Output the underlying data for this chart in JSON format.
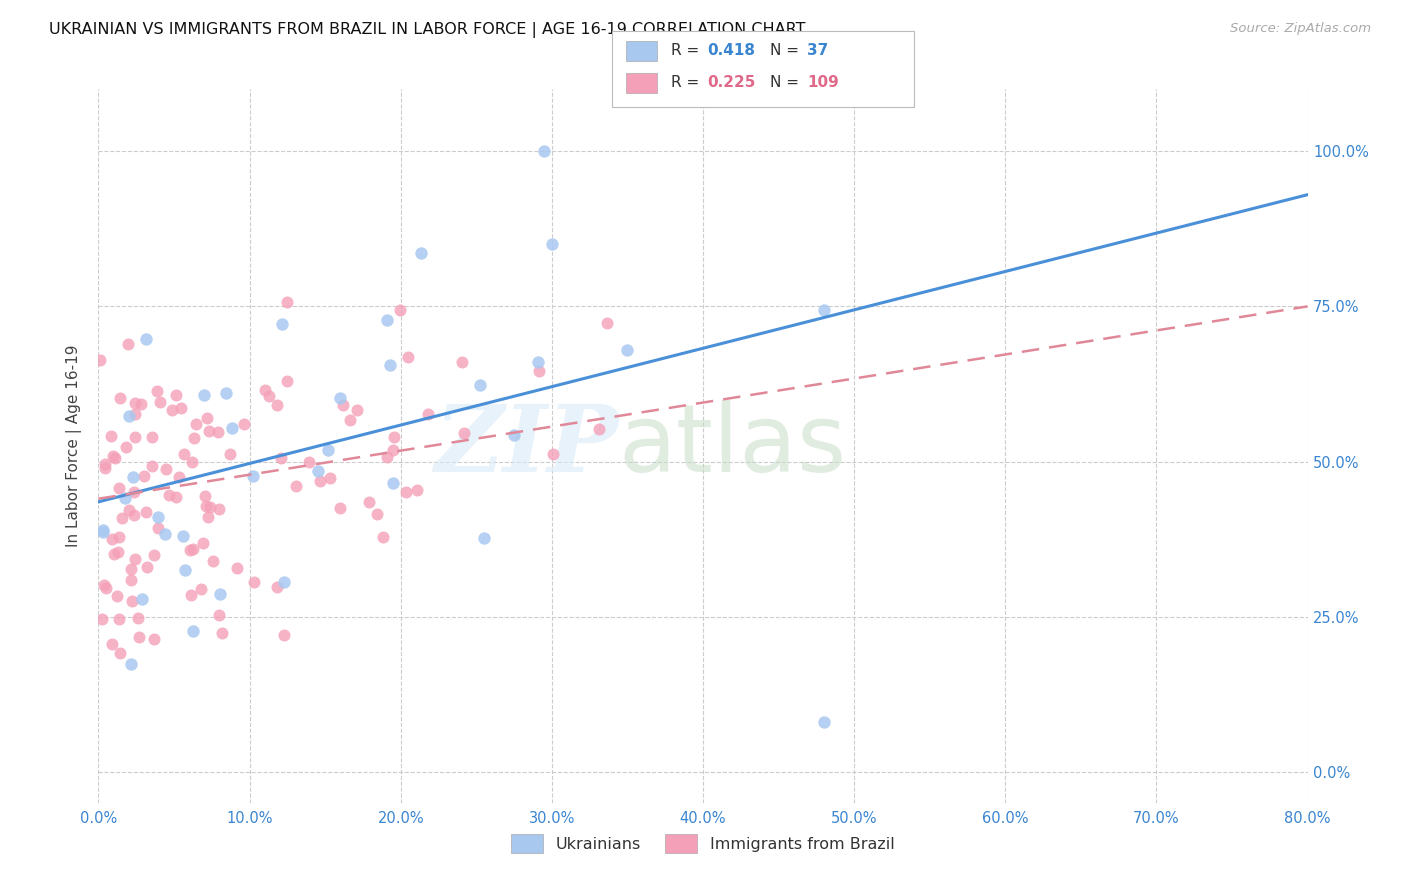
{
  "title": "UKRAINIAN VS IMMIGRANTS FROM BRAZIL IN LABOR FORCE | AGE 16-19 CORRELATION CHART",
  "source": "Source: ZipAtlas.com",
  "ylabel": "In Labor Force | Age 16-19",
  "xlim": [
    0.0,
    0.8
  ],
  "ylim": [
    -0.05,
    1.1
  ],
  "xticks": [
    0.0,
    0.1,
    0.2,
    0.3,
    0.4,
    0.5,
    0.6,
    0.7,
    0.8
  ],
  "xticklabels": [
    "0.0%",
    "10.0%",
    "20.0%",
    "30.0%",
    "40.0%",
    "50.0%",
    "60.0%",
    "70.0%",
    "80.0%"
  ],
  "yticks": [
    0.0,
    0.25,
    0.5,
    0.75,
    1.0
  ],
  "yticklabels": [
    "0.0%",
    "25.0%",
    "50.0%",
    "75.0%",
    "100.0%"
  ],
  "color_ukrainian": "#a8c8f0",
  "color_brazil": "#f4a0b8",
  "color_line_ukrainian": "#4a90d9",
  "color_line_brazil": "#e08898",
  "trendline_ukr_x0": 0.0,
  "trendline_ukr_y0": 0.435,
  "trendline_ukr_x1": 0.8,
  "trendline_ukr_y1": 0.93,
  "trendline_bra_x0": 0.0,
  "trendline_bra_y0": 0.44,
  "trendline_bra_x1": 0.8,
  "trendline_bra_y1": 0.75,
  "legend_r1": "0.418",
  "legend_n1": "37",
  "legend_r2": "0.225",
  "legend_n2": "109"
}
